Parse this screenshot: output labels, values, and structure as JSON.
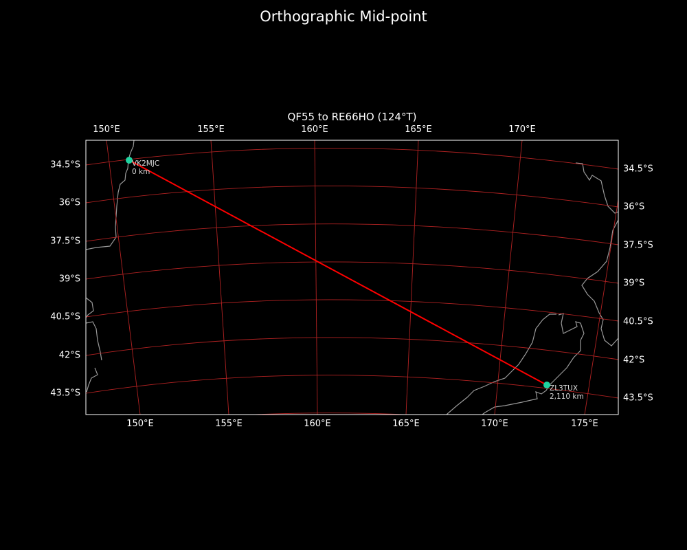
{
  "figure_title": "Orthographic Mid-point",
  "map_title": "QF55 to RE66HO (124°T)",
  "top_lon_labels": [
    "150°E",
    "155°E",
    "160°E",
    "165°E",
    "170°E"
  ],
  "bottom_lon_labels": [
    "150°E",
    "155°E",
    "160°E",
    "165°E",
    "170°E",
    "175°E"
  ],
  "left_lat_labels": [
    "34.5°S",
    "36°S",
    "37.5°S",
    "39°S",
    "40.5°S",
    "42°S",
    "43.5°S"
  ],
  "right_lat_labels": [
    "34.5°S",
    "36°S",
    "37.5°S",
    "39°S",
    "40.5°S",
    "42°S",
    "43.5°S"
  ],
  "stations": [
    {
      "call": "VK2MJC",
      "distance": "0 km"
    },
    {
      "call": "ZL3TUX",
      "distance": "2,110 km"
    }
  ],
  "colors": {
    "background": "#000000",
    "gridlines": "#b22222",
    "path": "#ff0000",
    "station_marker": "#1fd3a0",
    "coastline": "#999999"
  }
}
